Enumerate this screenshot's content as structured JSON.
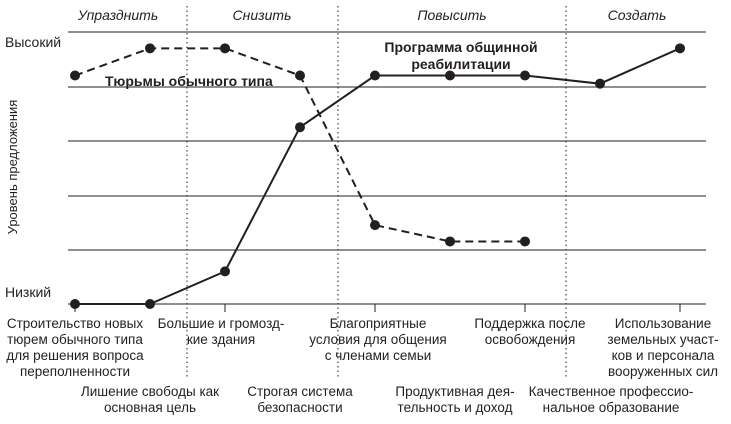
{
  "chart_data": {
    "type": "line",
    "sections": [
      "Упразднить",
      "Снизить",
      "Повысить",
      "Создать"
    ],
    "ylabel": "Уровень предложения",
    "y_ticks": [
      "Низкий",
      "Высокий"
    ],
    "ylim": [
      0,
      5
    ],
    "factors": [
      [
        "Строительство новых",
        "тюрем обычного типа",
        "для решения вопроса",
        "переполненности"
      ],
      [
        "Лишение свободы как",
        "основная цель"
      ],
      [
        "Большие и громозд-",
        "кие здания"
      ],
      [
        "Строгая система",
        "безопасности"
      ],
      [
        "Благоприятные",
        "условия для общения",
        "с членами семьи"
      ],
      [
        "Продуктивная дея-",
        "тельность и доход"
      ],
      [
        "Поддержка после",
        "освобождения"
      ],
      [
        "Качественное профессио-",
        "нальное образование"
      ],
      [
        "Использование",
        "земельных участ-",
        "ков и персонала",
        "вооруженных сил"
      ]
    ],
    "series": [
      {
        "name": "Тюрьмы обычного типа",
        "style": "dashed",
        "values": [
          4.2,
          4.7,
          4.7,
          4.2,
          1.45,
          1.15,
          1.15,
          null,
          null
        ]
      },
      {
        "name": "Программа общинной реабилитации",
        "style": "solid",
        "values": [
          0.0,
          0.0,
          0.6,
          3.25,
          4.2,
          4.2,
          4.2,
          4.05,
          4.7
        ]
      }
    ],
    "series_labels": {
      "dashed": [
        "Тюрьмы обычного типа"
      ],
      "solid": [
        "Программа общинной",
        "реабилитации"
      ]
    }
  }
}
